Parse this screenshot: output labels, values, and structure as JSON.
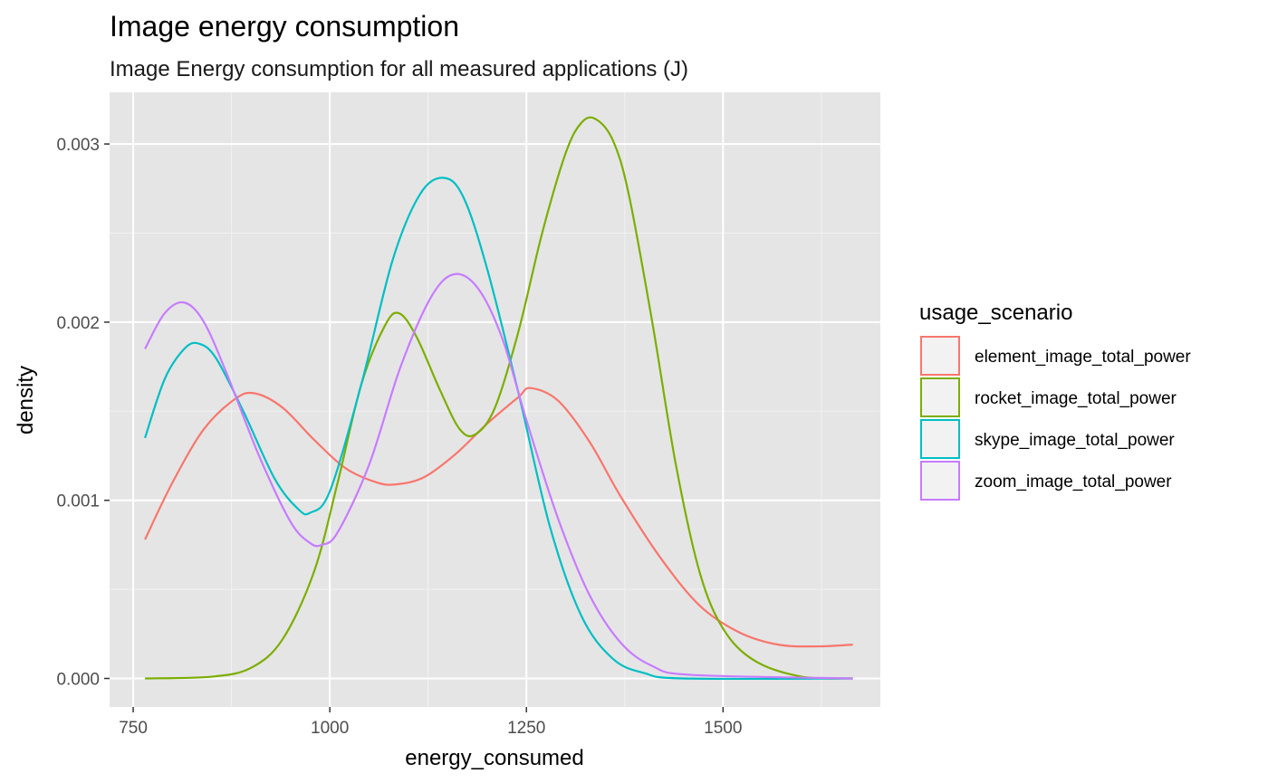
{
  "chart_data": {
    "type": "line",
    "title": "Image energy consumption",
    "subtitle": "Image Energy consumption for all measured applications (J)",
    "xlabel": "energy_consumed",
    "ylabel": "density",
    "xlim": [
      720,
      1700
    ],
    "ylim": [
      -0.00016,
      0.00329
    ],
    "x_ticks": [
      750,
      1000,
      1250,
      1500
    ],
    "x_tick_labels": [
      "750",
      "1000",
      "1250",
      "1500"
    ],
    "y_ticks": [
      0,
      0.001,
      0.002,
      0.003
    ],
    "y_tick_labels": [
      "0.000",
      "0.001",
      "0.002",
      "0.003"
    ],
    "grid": true,
    "background": "#e5e5e5",
    "legend": {
      "title": "usage_scenario",
      "position": "right"
    },
    "series": [
      {
        "name": "element_image_total_power",
        "color": "#f8766d",
        "points": [
          [
            765,
            0.00078
          ],
          [
            800,
            0.0011
          ],
          [
            840,
            0.0014
          ],
          [
            880,
            0.00157
          ],
          [
            905,
            0.0016
          ],
          [
            940,
            0.00152
          ],
          [
            980,
            0.00134
          ],
          [
            1020,
            0.00118
          ],
          [
            1060,
            0.0011
          ],
          [
            1085,
            0.00109
          ],
          [
            1120,
            0.00113
          ],
          [
            1160,
            0.00126
          ],
          [
            1200,
            0.00143
          ],
          [
            1240,
            0.00158
          ],
          [
            1255,
            0.00163
          ],
          [
            1290,
            0.00156
          ],
          [
            1330,
            0.00133
          ],
          [
            1370,
            0.00102
          ],
          [
            1420,
            0.00068
          ],
          [
            1470,
            0.00041
          ],
          [
            1520,
            0.00026
          ],
          [
            1570,
            0.00019
          ],
          [
            1620,
            0.00018
          ],
          [
            1665,
            0.00019
          ]
        ]
      },
      {
        "name": "rocket_image_total_power",
        "color": "#7cae00",
        "points": [
          [
            765,
            0.0
          ],
          [
            850,
            1e-05
          ],
          [
            900,
            6e-05
          ],
          [
            940,
            0.00022
          ],
          [
            980,
            0.0006
          ],
          [
            1010,
            0.0011
          ],
          [
            1040,
            0.00165
          ],
          [
            1070,
            0.00198
          ],
          [
            1088,
            0.00205
          ],
          [
            1110,
            0.00192
          ],
          [
            1140,
            0.00162
          ],
          [
            1165,
            0.0014
          ],
          [
            1185,
            0.00137
          ],
          [
            1210,
            0.00152
          ],
          [
            1240,
            0.00195
          ],
          [
            1270,
            0.0025
          ],
          [
            1300,
            0.00295
          ],
          [
            1320,
            0.00312
          ],
          [
            1338,
            0.00314
          ],
          [
            1360,
            0.00302
          ],
          [
            1380,
            0.00272
          ],
          [
            1410,
            0.002
          ],
          [
            1440,
            0.0012
          ],
          [
            1470,
            0.0006
          ],
          [
            1500,
            0.00028
          ],
          [
            1540,
            0.0001
          ],
          [
            1600,
            1e-05
          ],
          [
            1665,
            0.0
          ]
        ]
      },
      {
        "name": "skype_image_total_power",
        "color": "#00bfc4",
        "points": [
          [
            765,
            0.00135
          ],
          [
            790,
            0.00168
          ],
          [
            815,
            0.00185
          ],
          [
            833,
            0.00188
          ],
          [
            855,
            0.0018
          ],
          [
            890,
            0.0015
          ],
          [
            930,
            0.00112
          ],
          [
            960,
            0.00095
          ],
          [
            975,
            0.00093
          ],
          [
            1000,
            0.00105
          ],
          [
            1040,
            0.00165
          ],
          [
            1080,
            0.00235
          ],
          [
            1115,
            0.00272
          ],
          [
            1145,
            0.00281
          ],
          [
            1170,
            0.0027
          ],
          [
            1200,
            0.0023
          ],
          [
            1240,
            0.0016
          ],
          [
            1280,
            0.00085
          ],
          [
            1320,
            0.00035
          ],
          [
            1360,
            0.00011
          ],
          [
            1400,
            3e-05
          ],
          [
            1450,
            0.0
          ],
          [
            1665,
            0.0
          ]
        ]
      },
      {
        "name": "zoom_image_total_power",
        "color": "#c77cff",
        "points": [
          [
            765,
            0.00185
          ],
          [
            790,
            0.00205
          ],
          [
            815,
            0.00211
          ],
          [
            840,
            0.002
          ],
          [
            870,
            0.0017
          ],
          [
            910,
            0.00125
          ],
          [
            950,
            0.00088
          ],
          [
            975,
            0.00076
          ],
          [
            990,
            0.00075
          ],
          [
            1010,
            0.00082
          ],
          [
            1050,
            0.0012
          ],
          [
            1090,
            0.00175
          ],
          [
            1130,
            0.00215
          ],
          [
            1160,
            0.00227
          ],
          [
            1190,
            0.00218
          ],
          [
            1220,
            0.0019
          ],
          [
            1250,
            0.00145
          ],
          [
            1290,
            0.0009
          ],
          [
            1330,
            0.00047
          ],
          [
            1370,
            0.0002
          ],
          [
            1410,
            7e-05
          ],
          [
            1460,
            2e-05
          ],
          [
            1665,
            0.0
          ]
        ]
      }
    ]
  }
}
